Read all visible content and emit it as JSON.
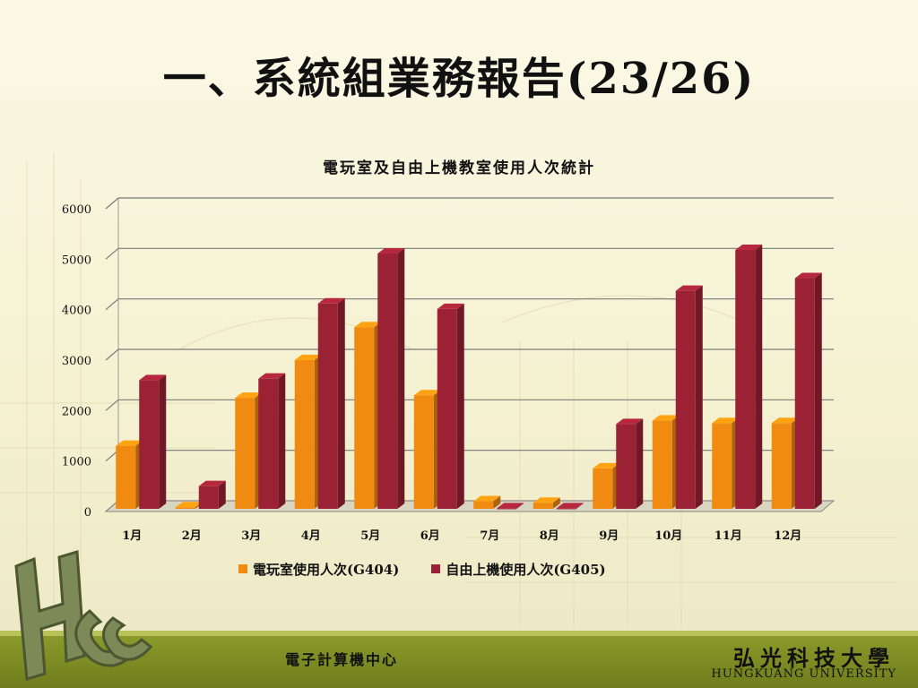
{
  "slide": {
    "title": "一、系統組業務報告(23/26)"
  },
  "chart_data": {
    "type": "bar",
    "title": "電玩室及自由上機教室使用人次統計",
    "categories": [
      "1月",
      "2月",
      "3月",
      "4月",
      "5月",
      "6月",
      "7月",
      "8月",
      "9月",
      "10月",
      "11月",
      "12月"
    ],
    "series": [
      {
        "name": "電玩室使用人次(G404)",
        "color": "#f08a10",
        "values": [
          1250,
          30,
          2200,
          2950,
          3600,
          2250,
          150,
          120,
          800,
          1750,
          1700,
          1700
        ]
      },
      {
        "name": "自由上機使用人次(G405)",
        "color": "#9b2235",
        "values": [
          2550,
          450,
          2580,
          4070,
          5060,
          3960,
          10,
          10,
          1680,
          4320,
          5130,
          4570
        ]
      }
    ],
    "ylim": [
      0,
      6000
    ],
    "yticks": [
      0,
      1000,
      2000,
      3000,
      4000,
      5000,
      6000
    ],
    "grid": true,
    "legend_position": "bottom"
  },
  "footer": {
    "center_label": "電子計算機中心",
    "university_name": "弘光科技大學",
    "university_en": "HUNGKUANG UNIVERSITY"
  },
  "logo": {
    "icon": "hkc-logo-icon"
  }
}
